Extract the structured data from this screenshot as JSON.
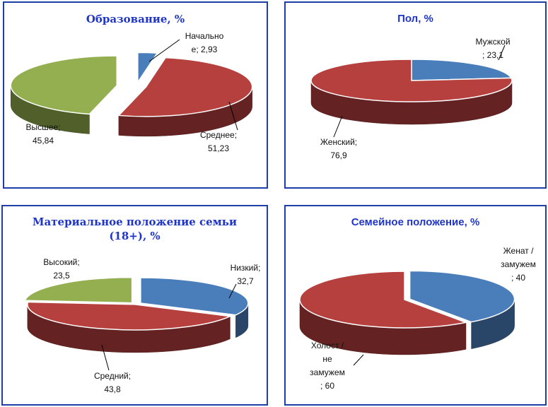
{
  "colors": {
    "frame": "#1f3fa8",
    "title": "#1f35c8",
    "blue": "#4a7ebb",
    "red": "#b5403e",
    "green": "#93af4f"
  },
  "chart_data": [
    {
      "type": "pie",
      "title": "Образование, %",
      "slices": [
        {
          "label": "Начальное",
          "value": 2.93,
          "color": "#4a7ebb",
          "label_lines": [
            "Начально",
            "е; 2,93"
          ]
        },
        {
          "label": "Среднее",
          "value": 51.23,
          "color": "#b5403e",
          "label_lines": [
            "Среднее;",
            "51,23"
          ]
        },
        {
          "label": "Высшее",
          "value": 45.84,
          "color": "#93af4f",
          "label_lines": [
            "Высшее;",
            "45,84"
          ]
        }
      ]
    },
    {
      "type": "pie",
      "title": "Пол, %",
      "slices": [
        {
          "label": "Мужской",
          "value": 23.1,
          "color": "#4a7ebb",
          "label_lines": [
            "Мужской",
            "; 23,1"
          ]
        },
        {
          "label": "Женский",
          "value": 76.9,
          "color": "#b5403e",
          "label_lines": [
            "Женский;",
            "76,9"
          ]
        }
      ]
    },
    {
      "type": "pie",
      "title": "Материальное положение семьи (18+), %",
      "title_lines": [
        "Материальное положение семьи",
        "(18+), %"
      ],
      "slices": [
        {
          "label": "Низкий",
          "value": 32.7,
          "color": "#4a7ebb",
          "label_lines": [
            "Низкий;",
            "32,7"
          ]
        },
        {
          "label": "Средний",
          "value": 43.8,
          "color": "#b5403e",
          "label_lines": [
            "Средний;",
            "43,8"
          ]
        },
        {
          "label": "Высокий",
          "value": 23.5,
          "color": "#93af4f",
          "label_lines": [
            "Высокий;",
            "23,5"
          ]
        }
      ]
    },
    {
      "type": "pie",
      "title": "Семейное положение, %",
      "slices": [
        {
          "label": "Женат / замужем",
          "value": 40,
          "color": "#4a7ebb",
          "label_lines": [
            "Женат /",
            "замужем",
            "; 40"
          ]
        },
        {
          "label": "Холост / не замужем",
          "value": 60,
          "color": "#b5403e",
          "label_lines": [
            "Холост /",
            "не",
            "замужем",
            "; 60"
          ]
        }
      ]
    }
  ]
}
